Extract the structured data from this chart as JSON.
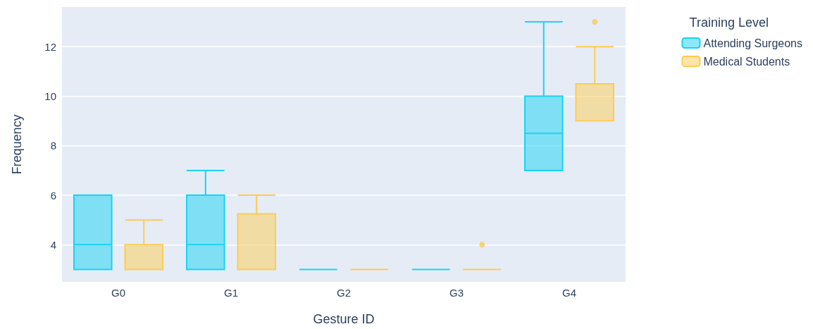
{
  "chart_data": {
    "type": "box",
    "xlabel": "Gesture ID",
    "ylabel": "Frequency",
    "legend_title": "Training Level",
    "categories": [
      "G0",
      "G1",
      "G2",
      "G3",
      "G4"
    ],
    "series": [
      {
        "name": "Attending Surgeons",
        "color": "#19d3f3",
        "boxes": [
          {
            "low": 3,
            "q1": 3,
            "median": 4,
            "q3": 6,
            "high": 6
          },
          {
            "low": 3,
            "q1": 3,
            "median": 4,
            "q3": 6,
            "high": 7
          },
          {
            "low": 3,
            "q1": 3,
            "median": 3,
            "q3": 3,
            "high": 3
          },
          {
            "low": 3,
            "q1": 3,
            "median": 3,
            "q3": 3,
            "high": 3
          },
          {
            "low": 7,
            "q1": 7,
            "median": 8.5,
            "q3": 10,
            "high": 13
          }
        ]
      },
      {
        "name": "Medical Students",
        "color": "#fecb52",
        "boxes": [
          {
            "low": 3,
            "q1": 3,
            "median": 3,
            "q3": 4,
            "high": 5
          },
          {
            "low": 3,
            "q1": 3,
            "median": 3,
            "q3": 5.25,
            "high": 6
          },
          {
            "low": 3,
            "q1": 3,
            "median": 3,
            "q3": 3,
            "high": 3
          },
          {
            "low": 3,
            "q1": 3,
            "median": 3,
            "q3": 3,
            "high": 3,
            "outliers": [
              4
            ]
          },
          {
            "low": 9,
            "q1": 9,
            "median": 9,
            "q3": 10.5,
            "high": 12,
            "outliers": [
              13
            ]
          }
        ]
      }
    ],
    "ylim": [
      2.5,
      13.6
    ],
    "yticks": [
      4,
      6,
      8,
      10,
      12
    ],
    "grid": "y",
    "legend": "top right"
  }
}
